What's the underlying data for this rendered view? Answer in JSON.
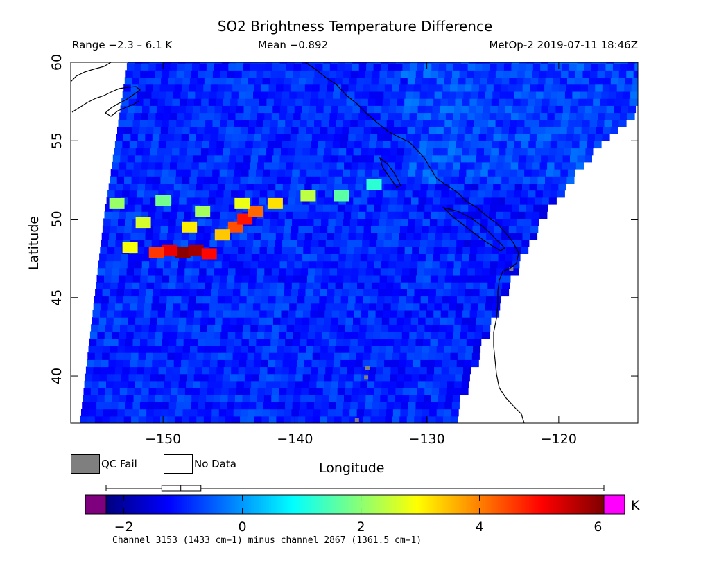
{
  "header": {
    "title": "SO2 Brightness Temperature Difference",
    "range_text": "Range −2.3 – 6.1 K",
    "mean_text": "Mean −0.892",
    "satellite_time": "MetOp-2 2019-07-11 18:46Z"
  },
  "legend": {
    "qc_fail_label": "QC Fail",
    "no_data_label": "No Data",
    "qc_fail_color": "#7f7f7f",
    "no_data_color": "#ffffff"
  },
  "colorbar": {
    "unit": "K",
    "range": [
      -2.3,
      6.1
    ],
    "ticks": [
      -2,
      0,
      2,
      4,
      6
    ],
    "tick_labels": [
      "−2",
      "0",
      "2",
      "4",
      "6"
    ],
    "underflow_color": "#7f007f",
    "overflow_color": "#ff00ff",
    "boxplot": {
      "min": -2.3,
      "q1": -1.36,
      "median": -1.04,
      "q3": -0.7,
      "max": 6.1
    },
    "footnote": "Channel 3153 (1433 cm−1) minus channel 2867 (1361.5 cm−1)"
  },
  "chart_data": {
    "type": "heatmap",
    "title": "SO2 Brightness Temperature Difference",
    "xlabel": "Longitude",
    "ylabel": "Latitude",
    "xlim": [
      -157,
      -114
    ],
    "ylim": [
      37,
      60
    ],
    "xticks": [
      -150,
      -140,
      -130,
      -120
    ],
    "xtick_labels": [
      "−150",
      "−140",
      "−130",
      "−120"
    ],
    "yticks": [
      40,
      45,
      50,
      55,
      60
    ],
    "ytick_labels": [
      "40",
      "45",
      "50",
      "55",
      "60"
    ],
    "value_range": [
      -2.3,
      6.1
    ],
    "mean": -0.892,
    "units": "K",
    "colormap": "jet",
    "swath_edges": {
      "west": [
        [
          -152.7,
          60
        ],
        [
          -153.6,
          55
        ],
        [
          -154.5,
          50
        ],
        [
          -155.2,
          45
        ],
        [
          -155.9,
          40
        ],
        [
          -156.3,
          37
        ]
      ],
      "east": [
        [
          -114,
          57.2
        ],
        [
          -119,
          53
        ],
        [
          -121.8,
          49.5
        ],
        [
          -124.0,
          46
        ],
        [
          -126.1,
          42
        ],
        [
          -128.0,
          37.5
        ]
      ]
    },
    "plume": [
      {
        "lon": -148.5,
        "lat": 47.9,
        "value": 6.0
      },
      {
        "lon": -147.5,
        "lat": 48.0,
        "value": 5.8
      },
      {
        "lon": -149.5,
        "lat": 48.0,
        "value": 5.2
      },
      {
        "lon": -146.5,
        "lat": 47.8,
        "value": 5.0
      },
      {
        "lon": -150.5,
        "lat": 47.9,
        "value": 4.6
      },
      {
        "lon": -144.5,
        "lat": 49.5,
        "value": 4.4
      },
      {
        "lon": -143.8,
        "lat": 50.0,
        "value": 4.9
      },
      {
        "lon": -143.0,
        "lat": 50.5,
        "value": 4.2
      },
      {
        "lon": -148.0,
        "lat": 49.5,
        "value": 3.1
      },
      {
        "lon": -145.5,
        "lat": 49.0,
        "value": 3.4
      },
      {
        "lon": -141.5,
        "lat": 51.0,
        "value": 3.2
      },
      {
        "lon": -144.0,
        "lat": 51.0,
        "value": 2.8
      },
      {
        "lon": -139.0,
        "lat": 51.5,
        "value": 2.4
      },
      {
        "lon": -151.5,
        "lat": 49.8,
        "value": 2.6
      },
      {
        "lon": -152.5,
        "lat": 48.2,
        "value": 2.9
      },
      {
        "lon": -153.5,
        "lat": 51.0,
        "value": 2.1
      },
      {
        "lon": -136.5,
        "lat": 51.5,
        "value": 1.6
      },
      {
        "lon": -134.0,
        "lat": 52.2,
        "value": 1.2
      },
      {
        "lon": -147.0,
        "lat": 50.5,
        "value": 2.2
      },
      {
        "lon": -150.0,
        "lat": 51.2,
        "value": 1.8
      }
    ],
    "qc_fail_points": [
      {
        "lon": -123.6,
        "lat": 46.8
      },
      {
        "lon": -134.5,
        "lat": 40.5
      },
      {
        "lon": -134.6,
        "lat": 39.9
      },
      {
        "lon": -135.3,
        "lat": 37.2
      }
    ]
  }
}
